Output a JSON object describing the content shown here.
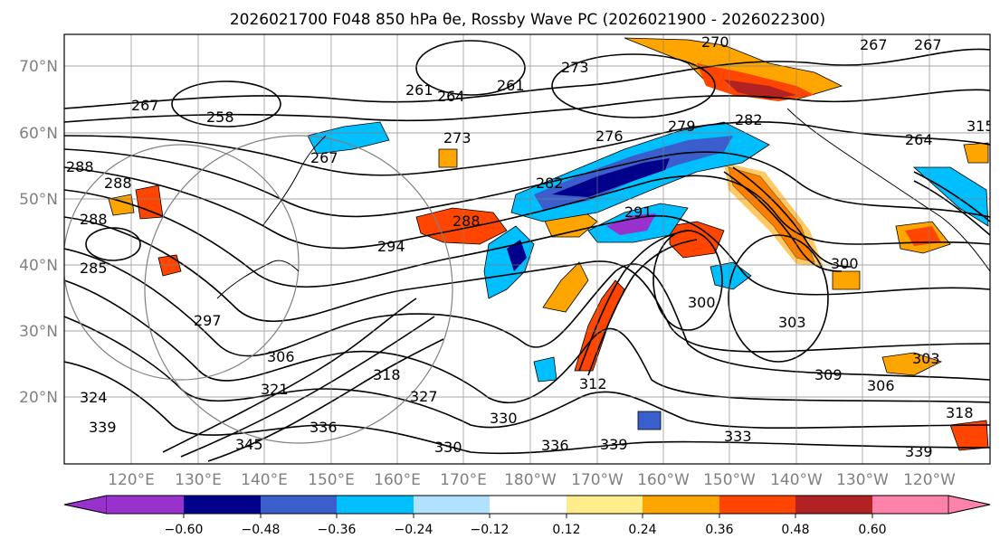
{
  "title": "2026021700 F048 850 hPa θe, Rossby Wave PC (2026021900 - 2026022300)",
  "lat_labels": [
    "70°N",
    "60°N",
    "50°N",
    "40°N",
    "30°N",
    "20°N"
  ],
  "lon_labels": [
    "120°E",
    "130°E",
    "140°E",
    "150°E",
    "160°E",
    "170°E",
    "180°W",
    "170°W",
    "160°W",
    "150°W",
    "140°W",
    "130°W",
    "120°W"
  ],
  "colorbar": {
    "ticks": [
      "−0.60",
      "−0.48",
      "−0.36",
      "−0.24",
      "−0.12",
      "0.12",
      "0.24",
      "0.36",
      "0.48",
      "0.60"
    ],
    "colors": [
      "#9932cc",
      "#00008b",
      "#3a5fcd",
      "#00bfff",
      "#b0e2ff",
      "#ffffff",
      "#ffec8b",
      "#ffa500",
      "#ff4500",
      "#b22222",
      "#ff82ab"
    ]
  },
  "contour_labels": [
    "270",
    "267",
    "267",
    "273",
    "261",
    "264",
    "258",
    "267",
    "261",
    "267",
    "273",
    "276",
    "279",
    "282",
    "264",
    "288",
    "288",
    "288",
    "285",
    "282",
    "288",
    "294",
    "291",
    "300",
    "300",
    "303",
    "297",
    "306",
    "309",
    "306",
    "303",
    "312",
    "318",
    "321",
    "324",
    "327",
    "330",
    "336",
    "339",
    "333",
    "345",
    "339",
    "315",
    "318",
    "339",
    "330",
    "336"
  ],
  "colors": {
    "contour": "#000000",
    "grid": "#808080"
  }
}
